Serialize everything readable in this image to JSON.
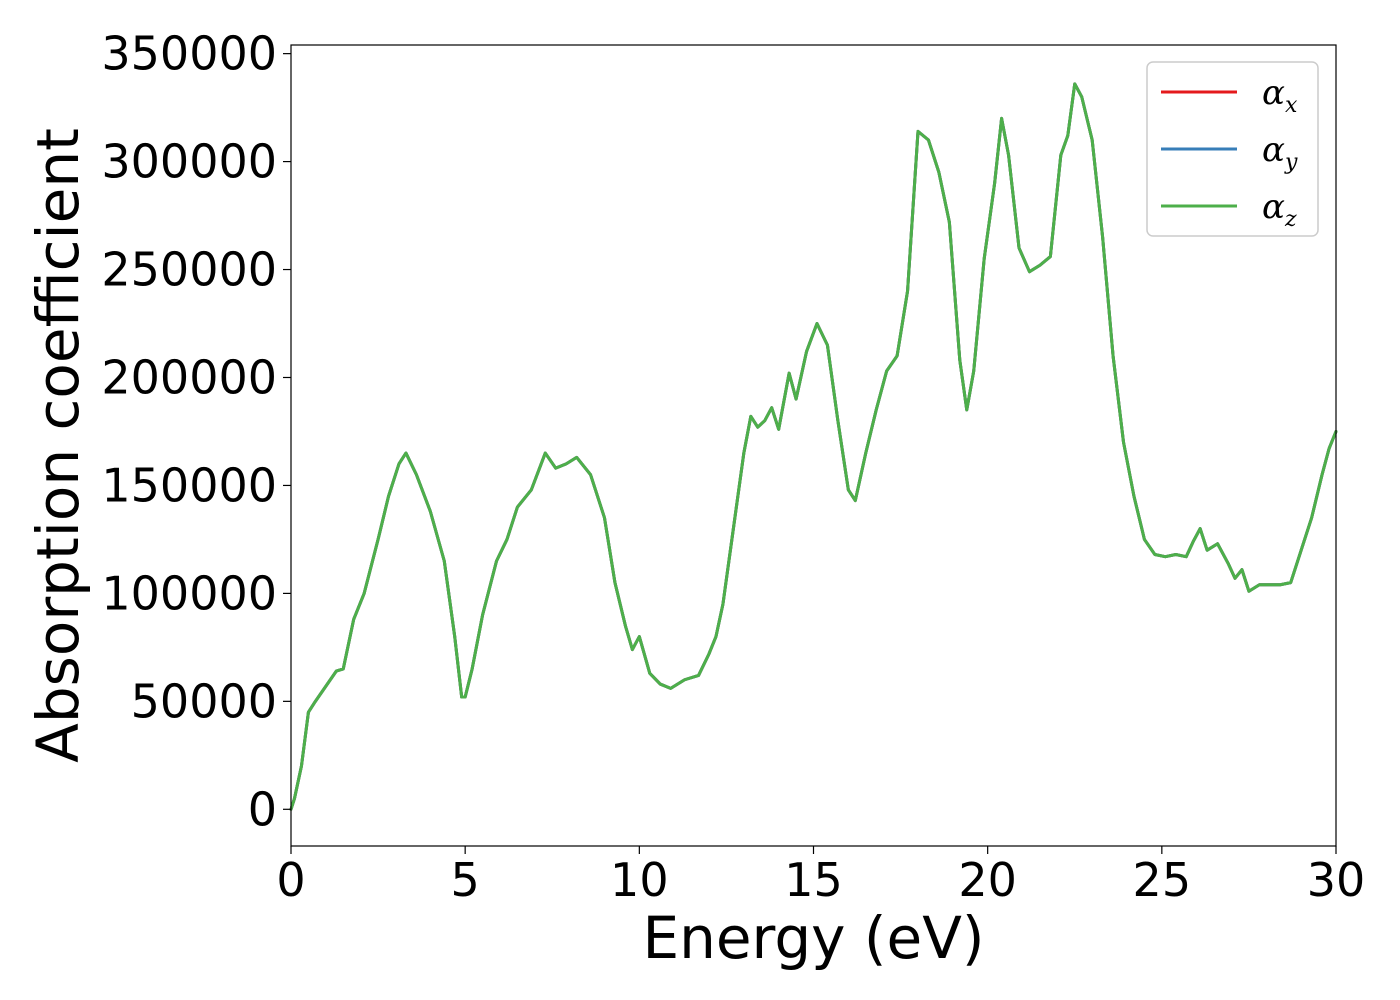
{
  "chart_data": {
    "type": "line",
    "title": "",
    "xlabel": "Energy (eV)",
    "ylabel": "Absorption coefficient",
    "xlim": [
      0,
      30
    ],
    "ylim": [
      -17000,
      354000
    ],
    "xticks": [
      0,
      5,
      10,
      15,
      20,
      25,
      30
    ],
    "xtick_labels": [
      "0",
      "5",
      "10",
      "15",
      "20",
      "25",
      "30"
    ],
    "yticks": [
      0,
      50000,
      100000,
      150000,
      200000,
      250000,
      300000,
      350000
    ],
    "ytick_labels": [
      "0",
      "50000",
      "100000",
      "150000",
      "200000",
      "250000",
      "300000",
      "350000"
    ],
    "grid": false,
    "legend_position": "top-right",
    "x": [
      0,
      0.1,
      0.3,
      0.5,
      0.7,
      1.0,
      1.3,
      1.5,
      1.8,
      2.1,
      2.5,
      2.8,
      3.1,
      3.3,
      3.6,
      4.0,
      4.4,
      4.7,
      4.9,
      5.0,
      5.2,
      5.5,
      5.9,
      6.2,
      6.5,
      6.9,
      7.3,
      7.6,
      7.9,
      8.2,
      8.6,
      9.0,
      9.3,
      9.6,
      9.8,
      10.0,
      10.3,
      10.6,
      10.9,
      11.3,
      11.7,
      12.0,
      12.2,
      12.4,
      12.7,
      13.0,
      13.2,
      13.4,
      13.6,
      13.8,
      14.0,
      14.3,
      14.5,
      14.8,
      15.1,
      15.4,
      15.7,
      16.0,
      16.2,
      16.5,
      16.8,
      17.1,
      17.4,
      17.7,
      18.0,
      18.3,
      18.6,
      18.9,
      19.2,
      19.4,
      19.6,
      19.9,
      20.2,
      20.4,
      20.6,
      20.9,
      21.2,
      21.5,
      21.8,
      22.1,
      22.3,
      22.5,
      22.7,
      23.0,
      23.3,
      23.6,
      23.9,
      24.2,
      24.5,
      24.8,
      25.1,
      25.4,
      25.7,
      25.9,
      26.1,
      26.3,
      26.6,
      26.9,
      27.1,
      27.3,
      27.5,
      27.8,
      28.1,
      28.4,
      28.7,
      29.0,
      29.3,
      29.6,
      29.8,
      30.0
    ],
    "series": [
      {
        "name": "αx",
        "color": "#e41a1c",
        "values": [
          0,
          5000,
          20000,
          45000,
          50000,
          57000,
          64000,
          65000,
          88000,
          100000,
          125000,
          145000,
          160000,
          165000,
          155000,
          138000,
          115000,
          80000,
          52000,
          52000,
          65000,
          90000,
          115000,
          125000,
          140000,
          148000,
          165000,
          158000,
          160000,
          163000,
          155000,
          135000,
          105000,
          85000,
          74000,
          80000,
          63000,
          58000,
          56000,
          60000,
          62000,
          72000,
          80000,
          95000,
          130000,
          165000,
          182000,
          177000,
          180000,
          186000,
          176000,
          202000,
          190000,
          212000,
          225000,
          215000,
          180000,
          148000,
          143000,
          165000,
          185000,
          203000,
          210000,
          240000,
          314000,
          310000,
          295000,
          272000,
          208000,
          185000,
          203000,
          255000,
          290000,
          320000,
          303000,
          260000,
          249000,
          252000,
          256000,
          303000,
          312000,
          336000,
          330000,
          310000,
          265000,
          210000,
          170000,
          145000,
          125000,
          118000,
          117000,
          118000,
          117000,
          124000,
          130000,
          120000,
          123000,
          114000,
          107000,
          111000,
          101000,
          104000,
          104000,
          104000,
          105000,
          120000,
          135000,
          155000,
          167000,
          175000
        ]
      },
      {
        "name": "αy",
        "color": "#377eb8",
        "values": [
          0,
          5000,
          20000,
          45000,
          50000,
          57000,
          64000,
          65000,
          88000,
          100000,
          125000,
          145000,
          160000,
          165000,
          155000,
          138000,
          115000,
          80000,
          52000,
          52000,
          65000,
          90000,
          115000,
          125000,
          140000,
          148000,
          165000,
          158000,
          160000,
          163000,
          155000,
          135000,
          105000,
          85000,
          74000,
          80000,
          63000,
          58000,
          56000,
          60000,
          62000,
          72000,
          80000,
          95000,
          130000,
          165000,
          182000,
          177000,
          180000,
          186000,
          176000,
          202000,
          190000,
          212000,
          225000,
          215000,
          180000,
          148000,
          143000,
          165000,
          185000,
          203000,
          210000,
          240000,
          314000,
          310000,
          295000,
          272000,
          208000,
          185000,
          203000,
          255000,
          290000,
          320000,
          303000,
          260000,
          249000,
          252000,
          256000,
          303000,
          312000,
          336000,
          330000,
          310000,
          265000,
          210000,
          170000,
          145000,
          125000,
          118000,
          117000,
          118000,
          117000,
          124000,
          130000,
          120000,
          123000,
          114000,
          107000,
          111000,
          101000,
          104000,
          104000,
          104000,
          105000,
          120000,
          135000,
          155000,
          167000,
          175000
        ]
      },
      {
        "name": "αz",
        "color": "#4daf4a",
        "values": [
          0,
          5000,
          20000,
          45000,
          50000,
          57000,
          64000,
          65000,
          88000,
          100000,
          125000,
          145000,
          160000,
          165000,
          155000,
          138000,
          115000,
          80000,
          52000,
          52000,
          65000,
          90000,
          115000,
          125000,
          140000,
          148000,
          165000,
          158000,
          160000,
          163000,
          155000,
          135000,
          105000,
          85000,
          74000,
          80000,
          63000,
          58000,
          56000,
          60000,
          62000,
          72000,
          80000,
          95000,
          130000,
          165000,
          182000,
          177000,
          180000,
          186000,
          176000,
          202000,
          190000,
          212000,
          225000,
          215000,
          180000,
          148000,
          143000,
          165000,
          185000,
          203000,
          210000,
          240000,
          314000,
          310000,
          295000,
          272000,
          208000,
          185000,
          203000,
          255000,
          290000,
          320000,
          303000,
          260000,
          249000,
          252000,
          256000,
          303000,
          312000,
          336000,
          330000,
          310000,
          265000,
          210000,
          170000,
          145000,
          125000,
          118000,
          117000,
          118000,
          117000,
          124000,
          130000,
          120000,
          123000,
          114000,
          107000,
          111000,
          101000,
          104000,
          104000,
          104000,
          105000,
          120000,
          135000,
          155000,
          167000,
          175000
        ]
      }
    ],
    "legend": [
      {
        "symbol": "α",
        "sub": "x",
        "color": "#e41a1c"
      },
      {
        "symbol": "α",
        "sub": "y",
        "color": "#377eb8"
      },
      {
        "symbol": "α",
        "sub": "z",
        "color": "#4daf4a"
      }
    ]
  }
}
